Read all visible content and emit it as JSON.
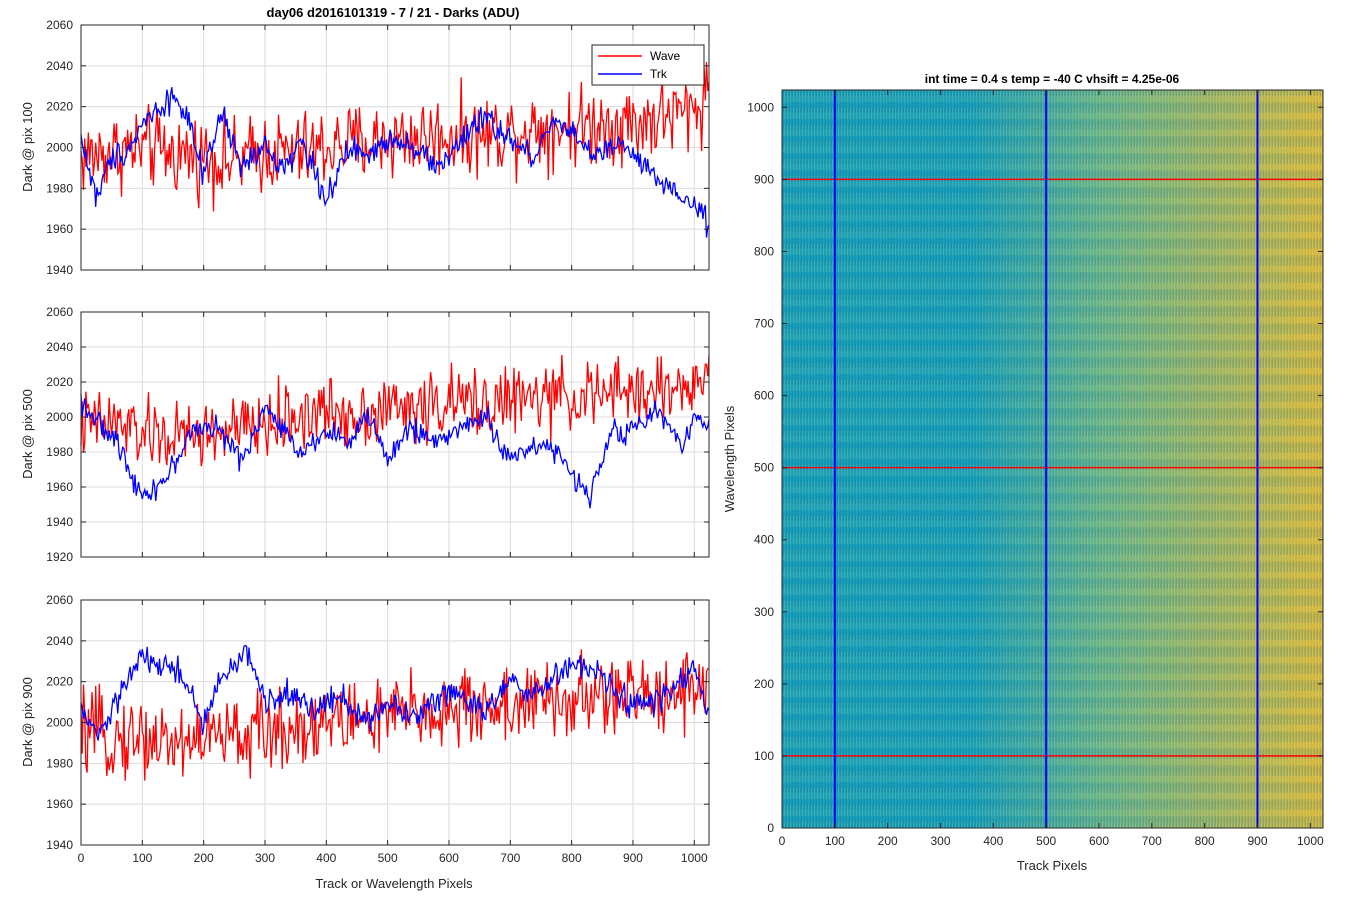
{
  "figure": {
    "title": "day06 d2016101319 - 7 / 21 - Darks (ADU)",
    "xlabel": "Track or Wavelength Pixels"
  },
  "chart_data": [
    {
      "type": "line",
      "ylabel": "Dark @ pix 100",
      "xlim": [
        0,
        1024
      ],
      "ylim": [
        1940,
        2060
      ],
      "xticks": [
        0,
        100,
        200,
        300,
        400,
        500,
        600,
        700,
        800,
        900,
        1000
      ],
      "yticks": [
        1940,
        1960,
        1980,
        2000,
        2020,
        2040,
        2060
      ],
      "grid": true,
      "legend_position": "top-right",
      "series": [
        {
          "name": "Wave",
          "color": "#ff0000",
          "x": [
            0,
            50,
            100,
            150,
            200,
            250,
            300,
            350,
            400,
            450,
            500,
            550,
            600,
            650,
            700,
            750,
            800,
            850,
            900,
            950,
            1000,
            1024
          ],
          "values": [
            1995,
            1998,
            2000,
            1997,
            1996,
            1993,
            1998,
            1997,
            2000,
            2002,
            2004,
            2005,
            2006,
            2006,
            2008,
            2010,
            2010,
            2012,
            2012,
            2015,
            2018,
            2030
          ]
        },
        {
          "name": "Trk",
          "color": "#0000ff",
          "x": [
            0,
            25,
            50,
            80,
            100,
            130,
            150,
            170,
            200,
            230,
            260,
            300,
            330,
            360,
            400,
            440,
            470,
            500,
            540,
            580,
            620,
            660,
            700,
            740,
            770,
            800,
            840,
            880,
            920,
            960,
            1000,
            1024
          ],
          "values": [
            2005,
            1975,
            1995,
            2000,
            2012,
            2020,
            2025,
            2018,
            1985,
            2018,
            1990,
            2000,
            1990,
            2003,
            1975,
            2000,
            1995,
            2005,
            2002,
            1990,
            2003,
            2015,
            2003,
            1995,
            2015,
            2008,
            1995,
            2002,
            1990,
            1978,
            1972,
            1962
          ]
        }
      ]
    },
    {
      "type": "line",
      "ylabel": "Dark @ pix 500",
      "xlim": [
        0,
        1024
      ],
      "ylim": [
        1920,
        2060
      ],
      "xticks": [
        0,
        100,
        200,
        300,
        400,
        500,
        600,
        700,
        800,
        900,
        1000
      ],
      "yticks": [
        1920,
        1940,
        1960,
        1980,
        2000,
        2020,
        2040,
        2060
      ],
      "grid": true,
      "series": [
        {
          "name": "Wave",
          "color": "#ff0000",
          "x": [
            0,
            50,
            100,
            150,
            200,
            250,
            300,
            350,
            400,
            450,
            500,
            550,
            600,
            650,
            700,
            750,
            800,
            850,
            900,
            950,
            1000,
            1024
          ],
          "values": [
            1995,
            1997,
            1990,
            1988,
            1990,
            1992,
            1995,
            2000,
            2003,
            2002,
            2005,
            2005,
            2008,
            2008,
            2010,
            2010,
            2012,
            2012,
            2015,
            2015,
            2018,
            2022
          ]
        },
        {
          "name": "Trk",
          "color": "#0000ff",
          "x": [
            0,
            30,
            60,
            100,
            140,
            180,
            220,
            260,
            300,
            330,
            360,
            400,
            440,
            470,
            500,
            540,
            580,
            620,
            660,
            700,
            740,
            780,
            800,
            830,
            860,
            900,
            940,
            980,
            1000,
            1024
          ],
          "values": [
            2010,
            1995,
            1985,
            1955,
            1965,
            1992,
            1995,
            1975,
            2005,
            1992,
            1980,
            1993,
            1985,
            2002,
            1975,
            1995,
            1985,
            1995,
            2000,
            1975,
            1985,
            1980,
            1965,
            1955,
            1990,
            1993,
            2003,
            1985,
            2000,
            1995
          ]
        }
      ]
    },
    {
      "type": "line",
      "ylabel": "Dark @ pix 900",
      "xlim": [
        0,
        1024
      ],
      "ylim": [
        1940,
        2060
      ],
      "xticks": [
        0,
        100,
        200,
        300,
        400,
        500,
        600,
        700,
        800,
        900,
        1000
      ],
      "yticks": [
        1940,
        1960,
        1980,
        2000,
        2020,
        2040,
        2060
      ],
      "grid": true,
      "series": [
        {
          "name": "Wave",
          "color": "#ff0000",
          "x": [
            0,
            50,
            100,
            150,
            200,
            250,
            300,
            350,
            400,
            450,
            500,
            550,
            600,
            650,
            700,
            750,
            800,
            850,
            900,
            950,
            1000,
            1024
          ],
          "values": [
            1995,
            1992,
            1993,
            1990,
            1993,
            1993,
            1995,
            1998,
            2000,
            2002,
            2003,
            2005,
            2005,
            2008,
            2008,
            2010,
            2010,
            2012,
            2013,
            2015,
            2018,
            2022
          ]
        },
        {
          "name": "Trk",
          "color": "#0000ff",
          "x": [
            0,
            30,
            60,
            100,
            130,
            160,
            200,
            230,
            270,
            300,
            340,
            380,
            420,
            460,
            500,
            540,
            580,
            620,
            660,
            700,
            740,
            780,
            800,
            840,
            880,
            920,
            960,
            1000,
            1024
          ],
          "values": [
            2005,
            1993,
            2012,
            2032,
            2028,
            2025,
            2000,
            2022,
            2035,
            2010,
            2015,
            2005,
            2015,
            2000,
            2010,
            2002,
            2013,
            2015,
            2005,
            2020,
            2012,
            2025,
            2028,
            2025,
            2012,
            2008,
            2015,
            2025,
            2005
          ]
        }
      ]
    },
    {
      "type": "heatmap",
      "title": "int time = 0.4 s   temp = -40 C   vhsift = 4.25e-06",
      "xlabel": "Track Pixels",
      "ylabel": "Wavelength Pixels",
      "xlim": [
        0,
        1024
      ],
      "ylim": [
        0,
        1024
      ],
      "xticks": [
        0,
        100,
        200,
        300,
        400,
        500,
        600,
        700,
        800,
        900,
        1000
      ],
      "yticks": [
        0,
        100,
        200,
        300,
        400,
        500,
        600,
        700,
        800,
        900,
        1000
      ],
      "colormap": "parula",
      "low_color": "#1aa0b8",
      "high_color": "#d4b840",
      "marker_rows": [
        100,
        500,
        900
      ],
      "marker_row_color": "#ff0000",
      "marker_cols": [
        100,
        500,
        900
      ],
      "marker_col_color": "#0000ff"
    }
  ]
}
